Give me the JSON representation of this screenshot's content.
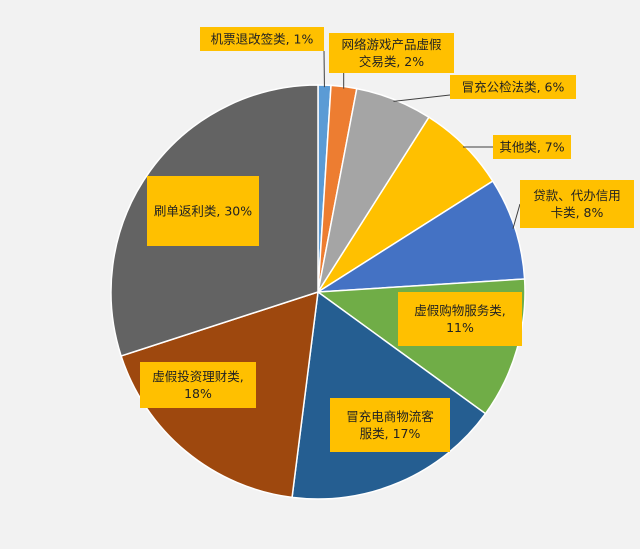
{
  "chart_data": {
    "type": "pie",
    "title": "",
    "legend": "none",
    "slices": [
      {
        "label": "机票退改签类",
        "percent_label": "1%",
        "value": 1,
        "color": "#5b9bd5",
        "label_lines": [
          "机票退改签类, 1%"
        ]
      },
      {
        "label": "网络游戏产品虚假交易类",
        "percent_label": "2%",
        "value": 2,
        "color": "#ed7d31",
        "label_lines": [
          "网络游戏产品虚假",
          "交易类, 2%"
        ]
      },
      {
        "label": "冒充公检法类",
        "percent_label": "6%",
        "value": 6,
        "color": "#a5a5a5",
        "label_lines": [
          "冒充公检法类, 6%"
        ]
      },
      {
        "label": "其他类",
        "percent_label": "7%",
        "value": 7,
        "color": "#ffc000",
        "label_lines": [
          "其他类, 7%"
        ]
      },
      {
        "label": "贷款、代办信用卡类",
        "percent_label": "8%",
        "value": 8,
        "color": "#4472c4",
        "label_lines": [
          "贷款、代办信用",
          "卡类, 8%"
        ]
      },
      {
        "label": "虚假购物服务类",
        "percent_label": "11%",
        "value": 11,
        "color": "#70ad47",
        "label_lines": [
          "虚假购物服务类,",
          "11%"
        ]
      },
      {
        "label": "冒充电商物流客服类",
        "percent_label": "17%",
        "value": 17,
        "color": "#255e91",
        "label_lines": [
          "冒充电商物流客",
          "服类, 17%"
        ]
      },
      {
        "label": "虚假投资理财类",
        "percent_label": "18%",
        "value": 18,
        "color": "#9e480e",
        "label_lines": [
          "虚假投资理财类,",
          "18%"
        ]
      },
      {
        "label": "刷单返利类",
        "percent_label": "30%",
        "value": 30,
        "color": "#636363",
        "label_lines": [
          "刷单返利类, 30%"
        ]
      }
    ],
    "label_box_color": "#ffc000"
  }
}
